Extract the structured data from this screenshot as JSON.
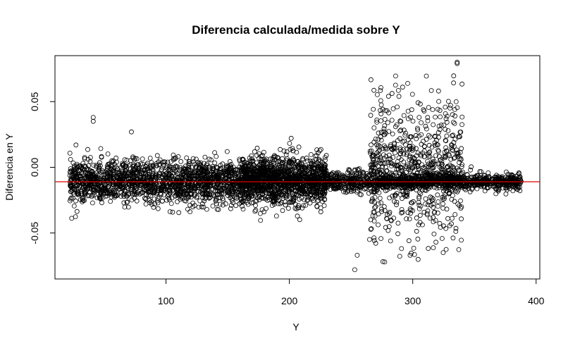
{
  "chart_data": {
    "type": "scatter",
    "title": "Diferencia calculada/medida sobre Y",
    "xlabel": "Y",
    "ylabel": "Diferencia en Y",
    "xlim": [
      10,
      403
    ],
    "ylim": [
      -0.085,
      0.085
    ],
    "x_ticks": [
      100,
      200,
      300,
      400
    ],
    "x_tick_labels": [
      "100",
      "200",
      "300",
      "400"
    ],
    "y_ticks": [
      -0.05,
      0.0,
      0.05
    ],
    "y_tick_labels": [
      "-0.05",
      "0.00",
      "0.05"
    ],
    "reference_line": {
      "orientation": "horizontal",
      "y": -0.011,
      "color": "#e00000"
    },
    "marker": "open-circle",
    "grid": false,
    "clusters": [
      {
        "name": "main-band-low-y",
        "x_range": [
          22,
          160
        ],
        "center": -0.011,
        "spread": 0.008,
        "count": 1600
      },
      {
        "name": "main-band-mid-y",
        "x_range": [
          160,
          230
        ],
        "center": -0.01,
        "spread": 0.009,
        "count": 1400
      },
      {
        "name": "main-band-transition",
        "x_range": [
          230,
          275
        ],
        "center": -0.011,
        "spread": 0.004,
        "count": 320
      },
      {
        "name": "main-band-high-y",
        "x_range": [
          275,
          388
        ],
        "center": -0.011,
        "spread": 0.003,
        "count": 900
      },
      {
        "name": "vertical-spread",
        "x_range": [
          265,
          340
        ],
        "center": 0.0,
        "spread": 0.08,
        "count": 700
      }
    ],
    "outliers": [
      {
        "x": 41,
        "y": 0.038
      },
      {
        "x": 41,
        "y": 0.035
      },
      {
        "x": 72,
        "y": 0.027
      },
      {
        "x": 27,
        "y": 0.017
      },
      {
        "x": 336,
        "y": 0.079
      },
      {
        "x": 336,
        "y": 0.08
      },
      {
        "x": 255,
        "y": -0.067
      },
      {
        "x": 253,
        "y": -0.078
      }
    ]
  }
}
